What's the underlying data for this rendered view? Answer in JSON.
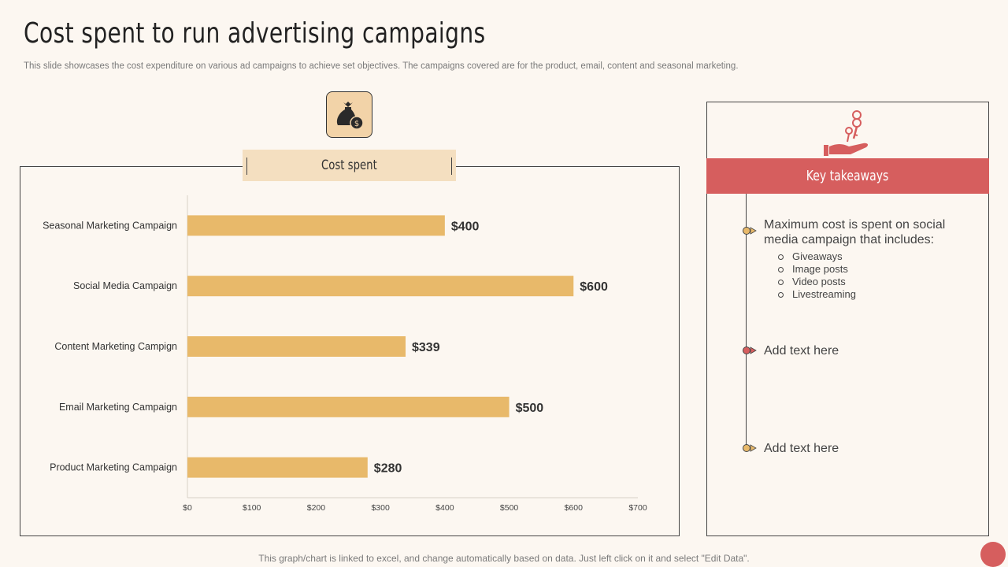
{
  "page": {
    "title": "Cost spent to run advertising campaigns",
    "subtitle": "This slide showcases the cost expenditure on various ad campaigns to achieve set objectives. The campaigns covered are for the product, email, content and seasonal marketing.",
    "footer": "This graph/chart is linked to excel,  and change automatically based on data. Just left click on it and select \"Edit Data\"."
  },
  "icons": {
    "chart_icon": "money-bag-icon",
    "takeaway_icon": "hand-with-keys-icon"
  },
  "colors": {
    "bar": "#e8b96a",
    "accent": "#d65e5e",
    "header_fill": "#f4dfc0",
    "background": "#fcf7f1"
  },
  "chart_data": {
    "type": "bar",
    "orientation": "horizontal",
    "title": "Cost spent",
    "categories": [
      "Seasonal Marketing Campaign",
      "Social Media Campaign",
      "Content Marketing Campign",
      "Email Marketing Campaign",
      "Product Marketing Campaign"
    ],
    "values": [
      400,
      600,
      339,
      500,
      280
    ],
    "value_labels": [
      "$400",
      "$600",
      "$339",
      "$500",
      "$280"
    ],
    "xlim": [
      0,
      700
    ],
    "x_ticks": [
      0,
      100,
      200,
      300,
      400,
      500,
      600,
      700
    ],
    "x_tick_labels": [
      "$0",
      "$100",
      "$200",
      "$300",
      "$400",
      "$500",
      "$600",
      "$700"
    ],
    "grid": false,
    "legend": "none"
  },
  "takeaways": {
    "title": "Key takeaways",
    "items": [
      {
        "text": "Maximum  cost is spent on social media campaign that includes:",
        "marker_color": "#e8b96a",
        "sub_items": [
          "Giveaways",
          "Image posts",
          "Video posts",
          "Livestreaming"
        ]
      },
      {
        "text": "Add text here",
        "marker_color": "#d65e5e",
        "sub_items": []
      },
      {
        "text": "Add text here",
        "marker_color": "#e8b96a",
        "sub_items": []
      }
    ]
  }
}
